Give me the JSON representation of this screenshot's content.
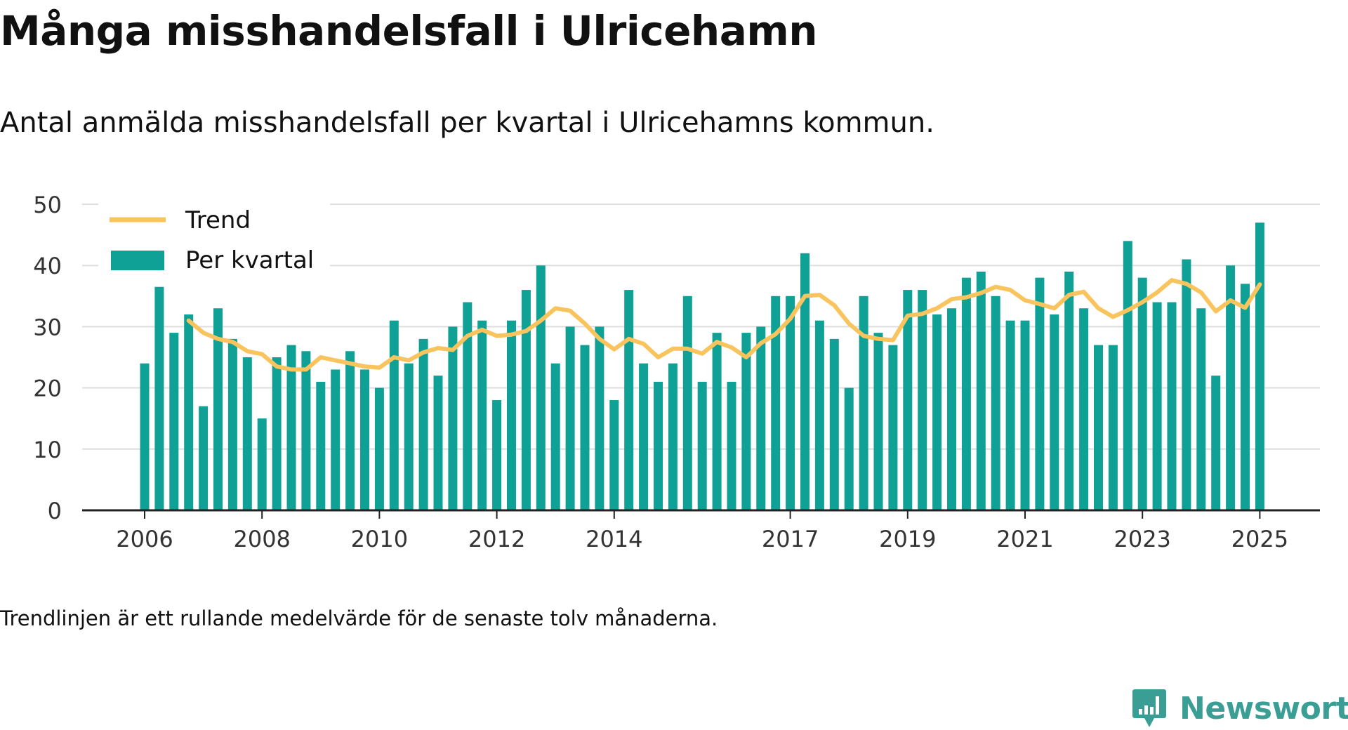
{
  "title": "Många misshandelsfall i Ulricehamn",
  "subtitle": "Antal anmälda misshandelsfall per kvartal i Ulricehamns kommun.",
  "footnote": "Trendlinjen är ett rullande medelvärde för de senaste tolv månaderna.",
  "brand": "Newsworthy",
  "colors": {
    "bar": "#0fa195",
    "trend": "#f9c45d",
    "grid": "#dddddd",
    "axis": "#222222",
    "brand": "#3a9e95"
  },
  "chart_data": {
    "type": "bar",
    "title": "Många misshandelsfall i Ulricehamn",
    "subtitle": "Antal anmälda misshandelsfall per kvartal i Ulricehamns kommun.",
    "xlabel": "",
    "ylabel": "",
    "ylim": [
      0,
      50
    ],
    "yticks": [
      0,
      10,
      20,
      30,
      40,
      50
    ],
    "xticks": [
      "2006",
      "2008",
      "2010",
      "2012",
      "2014",
      "2017",
      "2019",
      "2021",
      "2023",
      "2025"
    ],
    "xtick_positions": [
      0,
      8,
      16,
      24,
      32,
      44,
      52,
      60,
      68,
      76
    ],
    "legend": {
      "placement": "top-left",
      "entries": [
        "Trend",
        "Per kvartal"
      ]
    },
    "grid": true,
    "series": [
      {
        "name": "Per kvartal",
        "type": "bar",
        "values": [
          24,
          36.5,
          29,
          32,
          17,
          33,
          28,
          25,
          15,
          25,
          27,
          26,
          21,
          23,
          26,
          23,
          20,
          31,
          24,
          28,
          22,
          30,
          34,
          31,
          18,
          31,
          36,
          40,
          24,
          30,
          27,
          30,
          18,
          36,
          24,
          21,
          24,
          35,
          21,
          29,
          21,
          29,
          30,
          35,
          35,
          42,
          31,
          28,
          20,
          35,
          29,
          27,
          36,
          36,
          32,
          33,
          38,
          39,
          35,
          31,
          31,
          38,
          32,
          39,
          33,
          27,
          27,
          44,
          38,
          34,
          34,
          41,
          33,
          22,
          40,
          37,
          47
        ]
      },
      {
        "name": "Trend",
        "type": "line",
        "start_index": 3,
        "values": [
          31,
          29,
          28,
          27.5,
          26,
          25.5,
          23.5,
          23,
          23,
          25,
          24.5,
          24,
          23.5,
          23.3,
          25,
          24.5,
          25.8,
          26.5,
          26.2,
          28.5,
          29.5,
          28.5,
          28.7,
          29.3,
          31,
          33,
          32.6,
          30.5,
          28,
          26.3,
          28,
          27.2,
          25,
          26.4,
          26.4,
          25.6,
          27.5,
          26.6,
          25,
          27.3,
          28.8,
          31.3,
          35,
          35.2,
          33.5,
          30.5,
          28.5,
          28,
          27.8,
          31.8,
          32.1,
          33,
          34.5,
          34.8,
          35.5,
          36.5,
          36,
          34.3,
          33.7,
          33,
          35.2,
          35.7,
          33,
          31.6,
          32.7,
          34,
          35.6,
          37.6,
          37,
          35.6,
          32.5,
          34.3,
          33.1,
          36.9
        ]
      }
    ]
  }
}
